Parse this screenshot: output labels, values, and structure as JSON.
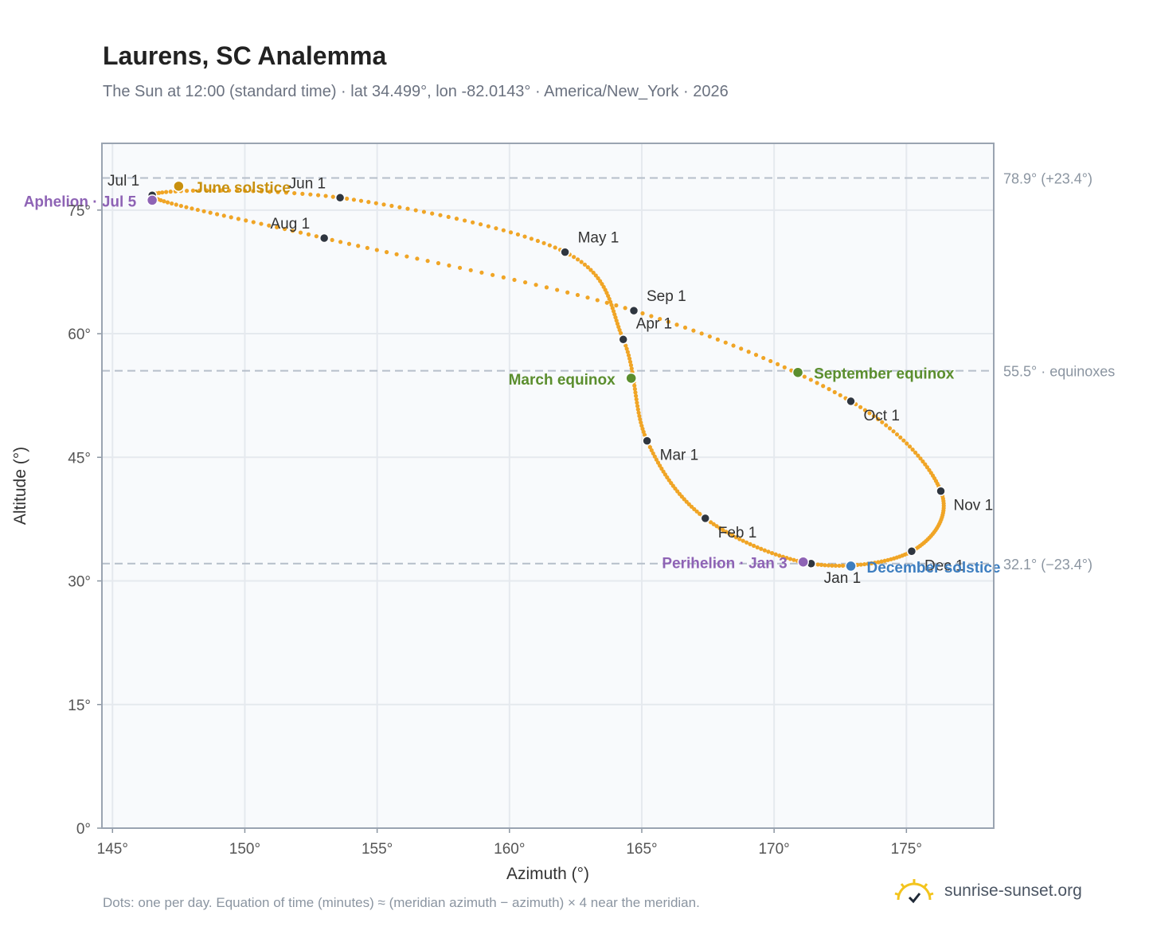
{
  "header": {
    "title": "Laurens, SC Analemma",
    "subtitle": "The Sun at 12:00 (standard time) · lat 34.499°, lon -82.0143° · America/New_York · 2026"
  },
  "footer": {
    "footnote": "Dots: one per day. Equation of time (minutes) ≈ (meridian azimuth − azimuth) × 4 near the meridian.",
    "brand": "sunrise-sunset.org"
  },
  "colors": {
    "curve": "#f0a526",
    "month_marker": "#2f3640",
    "solstice_june": "#c8900e",
    "solstice_december": "#3d7ec0",
    "equinox": "#5b8e2e",
    "apsis": "#8e63b5",
    "reference_line": "#b6bfca",
    "grid": "#e5e9ee",
    "plot_bg": "#f8fafc"
  },
  "chart_data": {
    "type": "scatter",
    "xlabel": "Azimuth (°)",
    "ylabel": "Altitude (°)",
    "xlim": [
      144.6,
      178.3
    ],
    "ylim": [
      0,
      83.1
    ],
    "xticks": [
      145,
      150,
      155,
      160,
      165,
      170,
      175
    ],
    "xtick_labels": [
      "145°",
      "150°",
      "155°",
      "160°",
      "165°",
      "170°",
      "175°"
    ],
    "yticks": [
      0,
      15,
      30,
      45,
      60,
      75
    ],
    "ytick_labels": [
      "0°",
      "15°",
      "30°",
      "45°",
      "60°",
      "75°"
    ],
    "grid": true,
    "month_points": [
      {
        "label": "Jan 1",
        "azimuth": 171.4,
        "altitude": 32.1
      },
      {
        "label": "Feb 1",
        "azimuth": 167.4,
        "altitude": 37.6
      },
      {
        "label": "Mar 1",
        "azimuth": 165.2,
        "altitude": 47.0
      },
      {
        "label": "Apr 1",
        "azimuth": 164.3,
        "altitude": 59.3
      },
      {
        "label": "May 1",
        "azimuth": 162.1,
        "altitude": 69.9
      },
      {
        "label": "Jun 1",
        "azimuth": 153.6,
        "altitude": 76.5
      },
      {
        "label": "Jul 1",
        "azimuth": 146.5,
        "altitude": 76.8
      },
      {
        "label": "Aug 1",
        "azimuth": 153.0,
        "altitude": 71.6
      },
      {
        "label": "Sep 1",
        "azimuth": 164.7,
        "altitude": 62.8
      },
      {
        "label": "Oct 1",
        "azimuth": 172.9,
        "altitude": 51.8
      },
      {
        "label": "Nov 1",
        "azimuth": 176.3,
        "altitude": 40.9
      },
      {
        "label": "Dec 1",
        "azimuth": 175.2,
        "altitude": 33.6
      }
    ],
    "special_points": [
      {
        "label": "June solstice",
        "azimuth": 147.5,
        "altitude": 77.9,
        "kind": "solstice_june"
      },
      {
        "label": "December solstice",
        "azimuth": 172.9,
        "altitude": 31.8,
        "kind": "solstice_december"
      },
      {
        "label": "March equinox",
        "azimuth": 164.6,
        "altitude": 54.6,
        "kind": "equinox"
      },
      {
        "label": "September equinox",
        "azimuth": 170.9,
        "altitude": 55.3,
        "kind": "equinox"
      },
      {
        "label": "Aphelion · Jul 5",
        "azimuth": 146.5,
        "altitude": 76.2,
        "kind": "apsis"
      },
      {
        "label": "Perihelion · Jan 3",
        "azimuth": 171.1,
        "altitude": 32.3,
        "kind": "apsis"
      }
    ],
    "reference_lines": [
      {
        "value": 78.9,
        "label": "78.9° (+23.4°)"
      },
      {
        "value": 55.5,
        "label": "55.5° · equinoxes"
      },
      {
        "value": 32.1,
        "label": "32.1° (−23.4°)"
      }
    ]
  }
}
